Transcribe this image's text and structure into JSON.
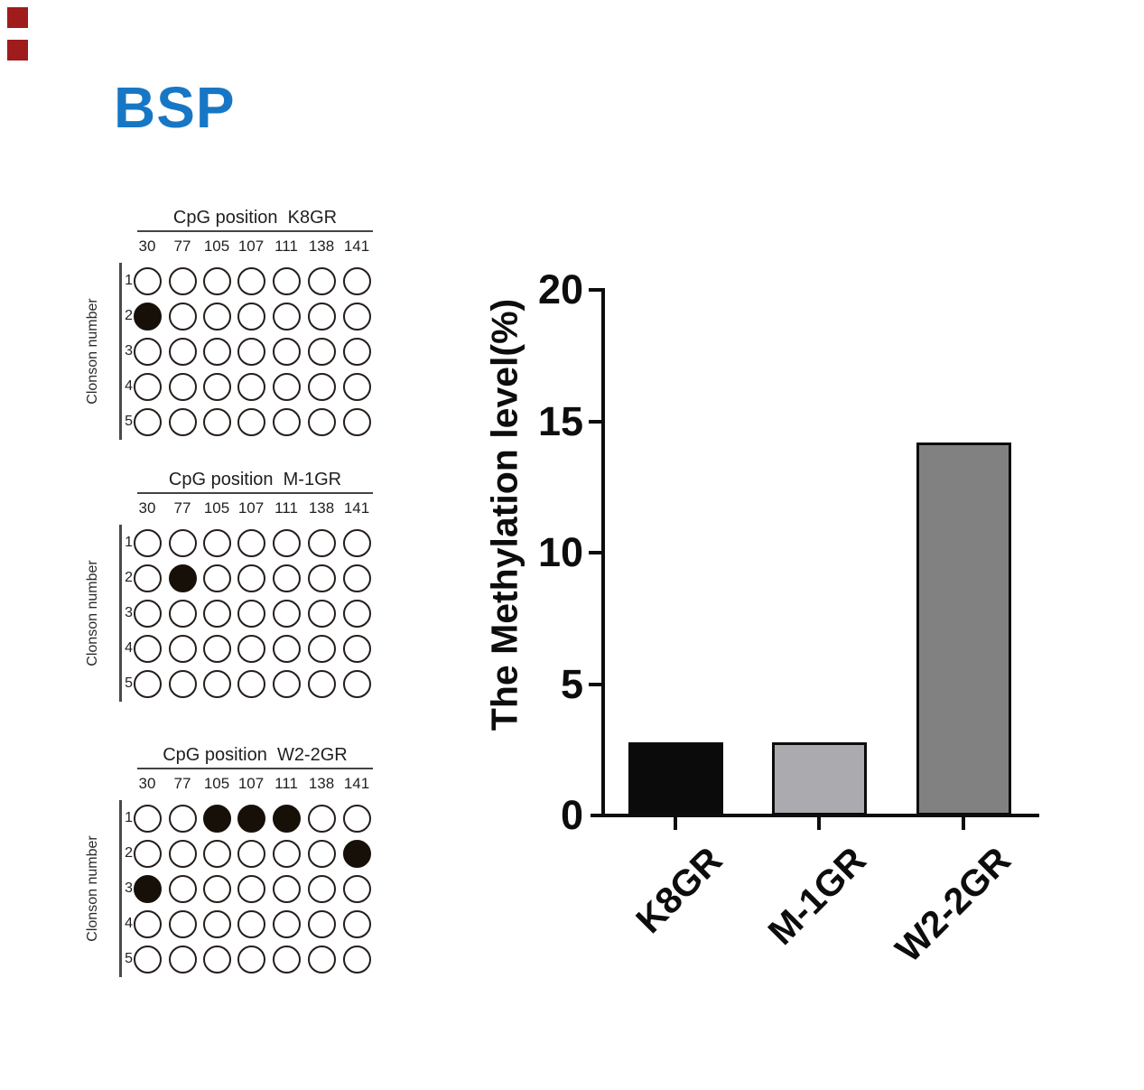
{
  "title": "BSP",
  "colors": {
    "title_blue": "#1777C5",
    "axis_black": "#0d0d0d",
    "red_marker": "#9e1c1c",
    "circle_filled": "#171009",
    "circle_stroke": "#241d1a"
  },
  "markers": {
    "top_left_squares": 2
  },
  "cpg_grids": [
    {
      "header": "CpG position  K8GR",
      "columns": [
        "30",
        "77",
        "105",
        "107",
        "111",
        "138",
        "141"
      ],
      "rows": [
        "1",
        "2",
        "3",
        "4",
        "5"
      ],
      "ylabel": "Clonson number",
      "fill_matrix": [
        [
          0,
          0,
          0,
          0,
          0,
          0,
          0
        ],
        [
          1,
          0,
          0,
          0,
          0,
          0,
          0
        ],
        [
          0,
          0,
          0,
          0,
          0,
          0,
          0
        ],
        [
          0,
          0,
          0,
          0,
          0,
          0,
          0
        ],
        [
          0,
          0,
          0,
          0,
          0,
          0,
          0
        ]
      ]
    },
    {
      "header": "CpG position  M-1GR",
      "columns": [
        "30",
        "77",
        "105",
        "107",
        "111",
        "138",
        "141"
      ],
      "rows": [
        "1",
        "2",
        "3",
        "4",
        "5"
      ],
      "ylabel": "Clonson number",
      "fill_matrix": [
        [
          0,
          0,
          0,
          0,
          0,
          0,
          0
        ],
        [
          0,
          1,
          0,
          0,
          0,
          0,
          0
        ],
        [
          0,
          0,
          0,
          0,
          0,
          0,
          0
        ],
        [
          0,
          0,
          0,
          0,
          0,
          0,
          0
        ],
        [
          0,
          0,
          0,
          0,
          0,
          0,
          0
        ]
      ]
    },
    {
      "header": "CpG position  W2-2GR",
      "columns": [
        "30",
        "77",
        "105",
        "107",
        "111",
        "138",
        "141"
      ],
      "rows": [
        "1",
        "2",
        "3",
        "4",
        "5"
      ],
      "ylabel": "Clonson number",
      "fill_matrix": [
        [
          0,
          0,
          1,
          1,
          1,
          0,
          0
        ],
        [
          0,
          0,
          0,
          0,
          0,
          0,
          1
        ],
        [
          1,
          0,
          0,
          0,
          0,
          0,
          0
        ],
        [
          0,
          0,
          0,
          0,
          0,
          0,
          0
        ],
        [
          0,
          0,
          0,
          0,
          0,
          0,
          0
        ]
      ]
    }
  ],
  "chart_data": {
    "type": "bar",
    "categories": [
      "K8GR",
      "M-1GR",
      "W2-2GR"
    ],
    "values": [
      2.8,
      2.8,
      14.2
    ],
    "title": "",
    "xlabel": "",
    "ylabel": "The Methylation level(%)",
    "ylim": [
      0,
      20
    ],
    "yticks": [
      0,
      5,
      10,
      15,
      20
    ],
    "bar_colors": [
      "#0b0b0b",
      "#ababaf",
      "#818181"
    ],
    "bar_border_color": "#0c0c0c",
    "grid": "off",
    "legend": "none"
  }
}
